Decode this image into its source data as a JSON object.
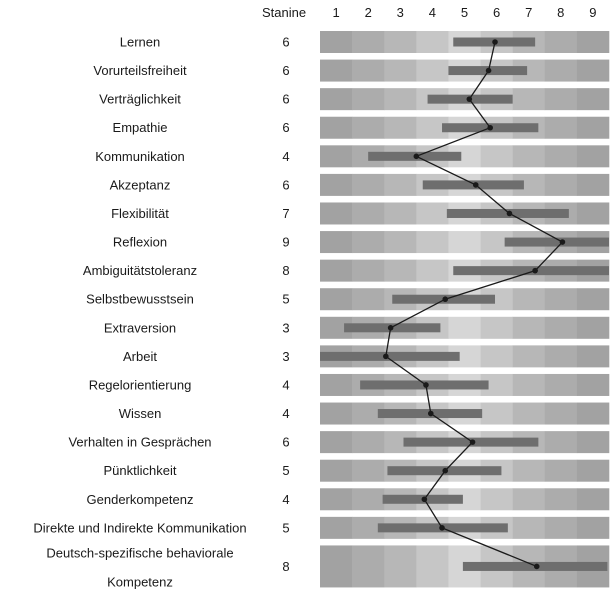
{
  "chart_data": {
    "type": "range-profile",
    "header": "Stanine",
    "scale": [
      1,
      2,
      3,
      4,
      5,
      6,
      7,
      8,
      9
    ],
    "xlim": [
      0.5,
      9.5
    ],
    "rows": [
      {
        "label": "Lernen",
        "stanine": "6",
        "value": 5.95,
        "low": 4.65,
        "high": 7.2
      },
      {
        "label": "Vorurteilsfreiheit",
        "stanine": "6",
        "value": 5.75,
        "low": 4.5,
        "high": 6.95
      },
      {
        "label": "Verträglichkeit",
        "stanine": "6",
        "value": 5.15,
        "low": 3.85,
        "high": 6.5
      },
      {
        "label": "Empathie",
        "stanine": "6",
        "value": 5.8,
        "low": 4.3,
        "high": 7.3
      },
      {
        "label": "Kommunikation",
        "stanine": "4",
        "value": 3.5,
        "low": 2.0,
        "high": 4.9
      },
      {
        "label": "Akzeptanz",
        "stanine": "6",
        "value": 5.35,
        "low": 3.7,
        "high": 6.85
      },
      {
        "label": "Flexibilität",
        "stanine": "7",
        "value": 6.4,
        "low": 4.45,
        "high": 8.25
      },
      {
        "label": "Reflexion",
        "stanine": "9",
        "value": 8.05,
        "low": 6.25,
        "high": 9.5
      },
      {
        "label": "Ambiguitätstoleranz",
        "stanine": "8",
        "value": 7.2,
        "low": 4.65,
        "high": 9.5
      },
      {
        "label": "Selbstbewusstsein",
        "stanine": "5",
        "value": 4.4,
        "low": 2.75,
        "high": 5.95
      },
      {
        "label": "Extraversion",
        "stanine": "3",
        "value": 2.7,
        "low": 1.25,
        "high": 4.25
      },
      {
        "label": "Arbeit",
        "stanine": "3",
        "value": 2.55,
        "low": 0.5,
        "high": 4.85
      },
      {
        "label": "Regelorientierung",
        "stanine": "4",
        "value": 3.8,
        "low": 1.75,
        "high": 5.75
      },
      {
        "label": "Wissen",
        "stanine": "4",
        "value": 3.95,
        "low": 2.3,
        "high": 5.55
      },
      {
        "label": "Verhalten in Gesprächen",
        "stanine": "6",
        "value": 5.25,
        "low": 3.1,
        "high": 7.3
      },
      {
        "label": "Pünktlichkeit",
        "stanine": "5",
        "value": 4.4,
        "low": 2.6,
        "high": 6.15
      },
      {
        "label": "Genderkompetenz",
        "stanine": "4",
        "value": 3.75,
        "low": 2.45,
        "high": 4.95
      },
      {
        "label": "Direkte und Indirekte Kommunikation",
        "stanine": "5",
        "value": 4.3,
        "low": 2.3,
        "high": 6.35
      },
      {
        "label": "Deutsch-spezifische behaviorale Kompetenz",
        "label_lines": [
          "Deutsch-spezifische behaviorale",
          "Kompetenz"
        ],
        "stanine": "8",
        "value": 7.25,
        "low": 4.95,
        "high": 9.45
      }
    ],
    "band_colors": [
      "#a2a2a2",
      "#acacac",
      "#b7b7b7",
      "#c6c6c6",
      "#d6d6d6",
      "#c6c6c6",
      "#b7b7b7",
      "#acacac",
      "#a2a2a2"
    ],
    "range_color": "#6e6e6e",
    "line_color": "#1a1a1a"
  }
}
